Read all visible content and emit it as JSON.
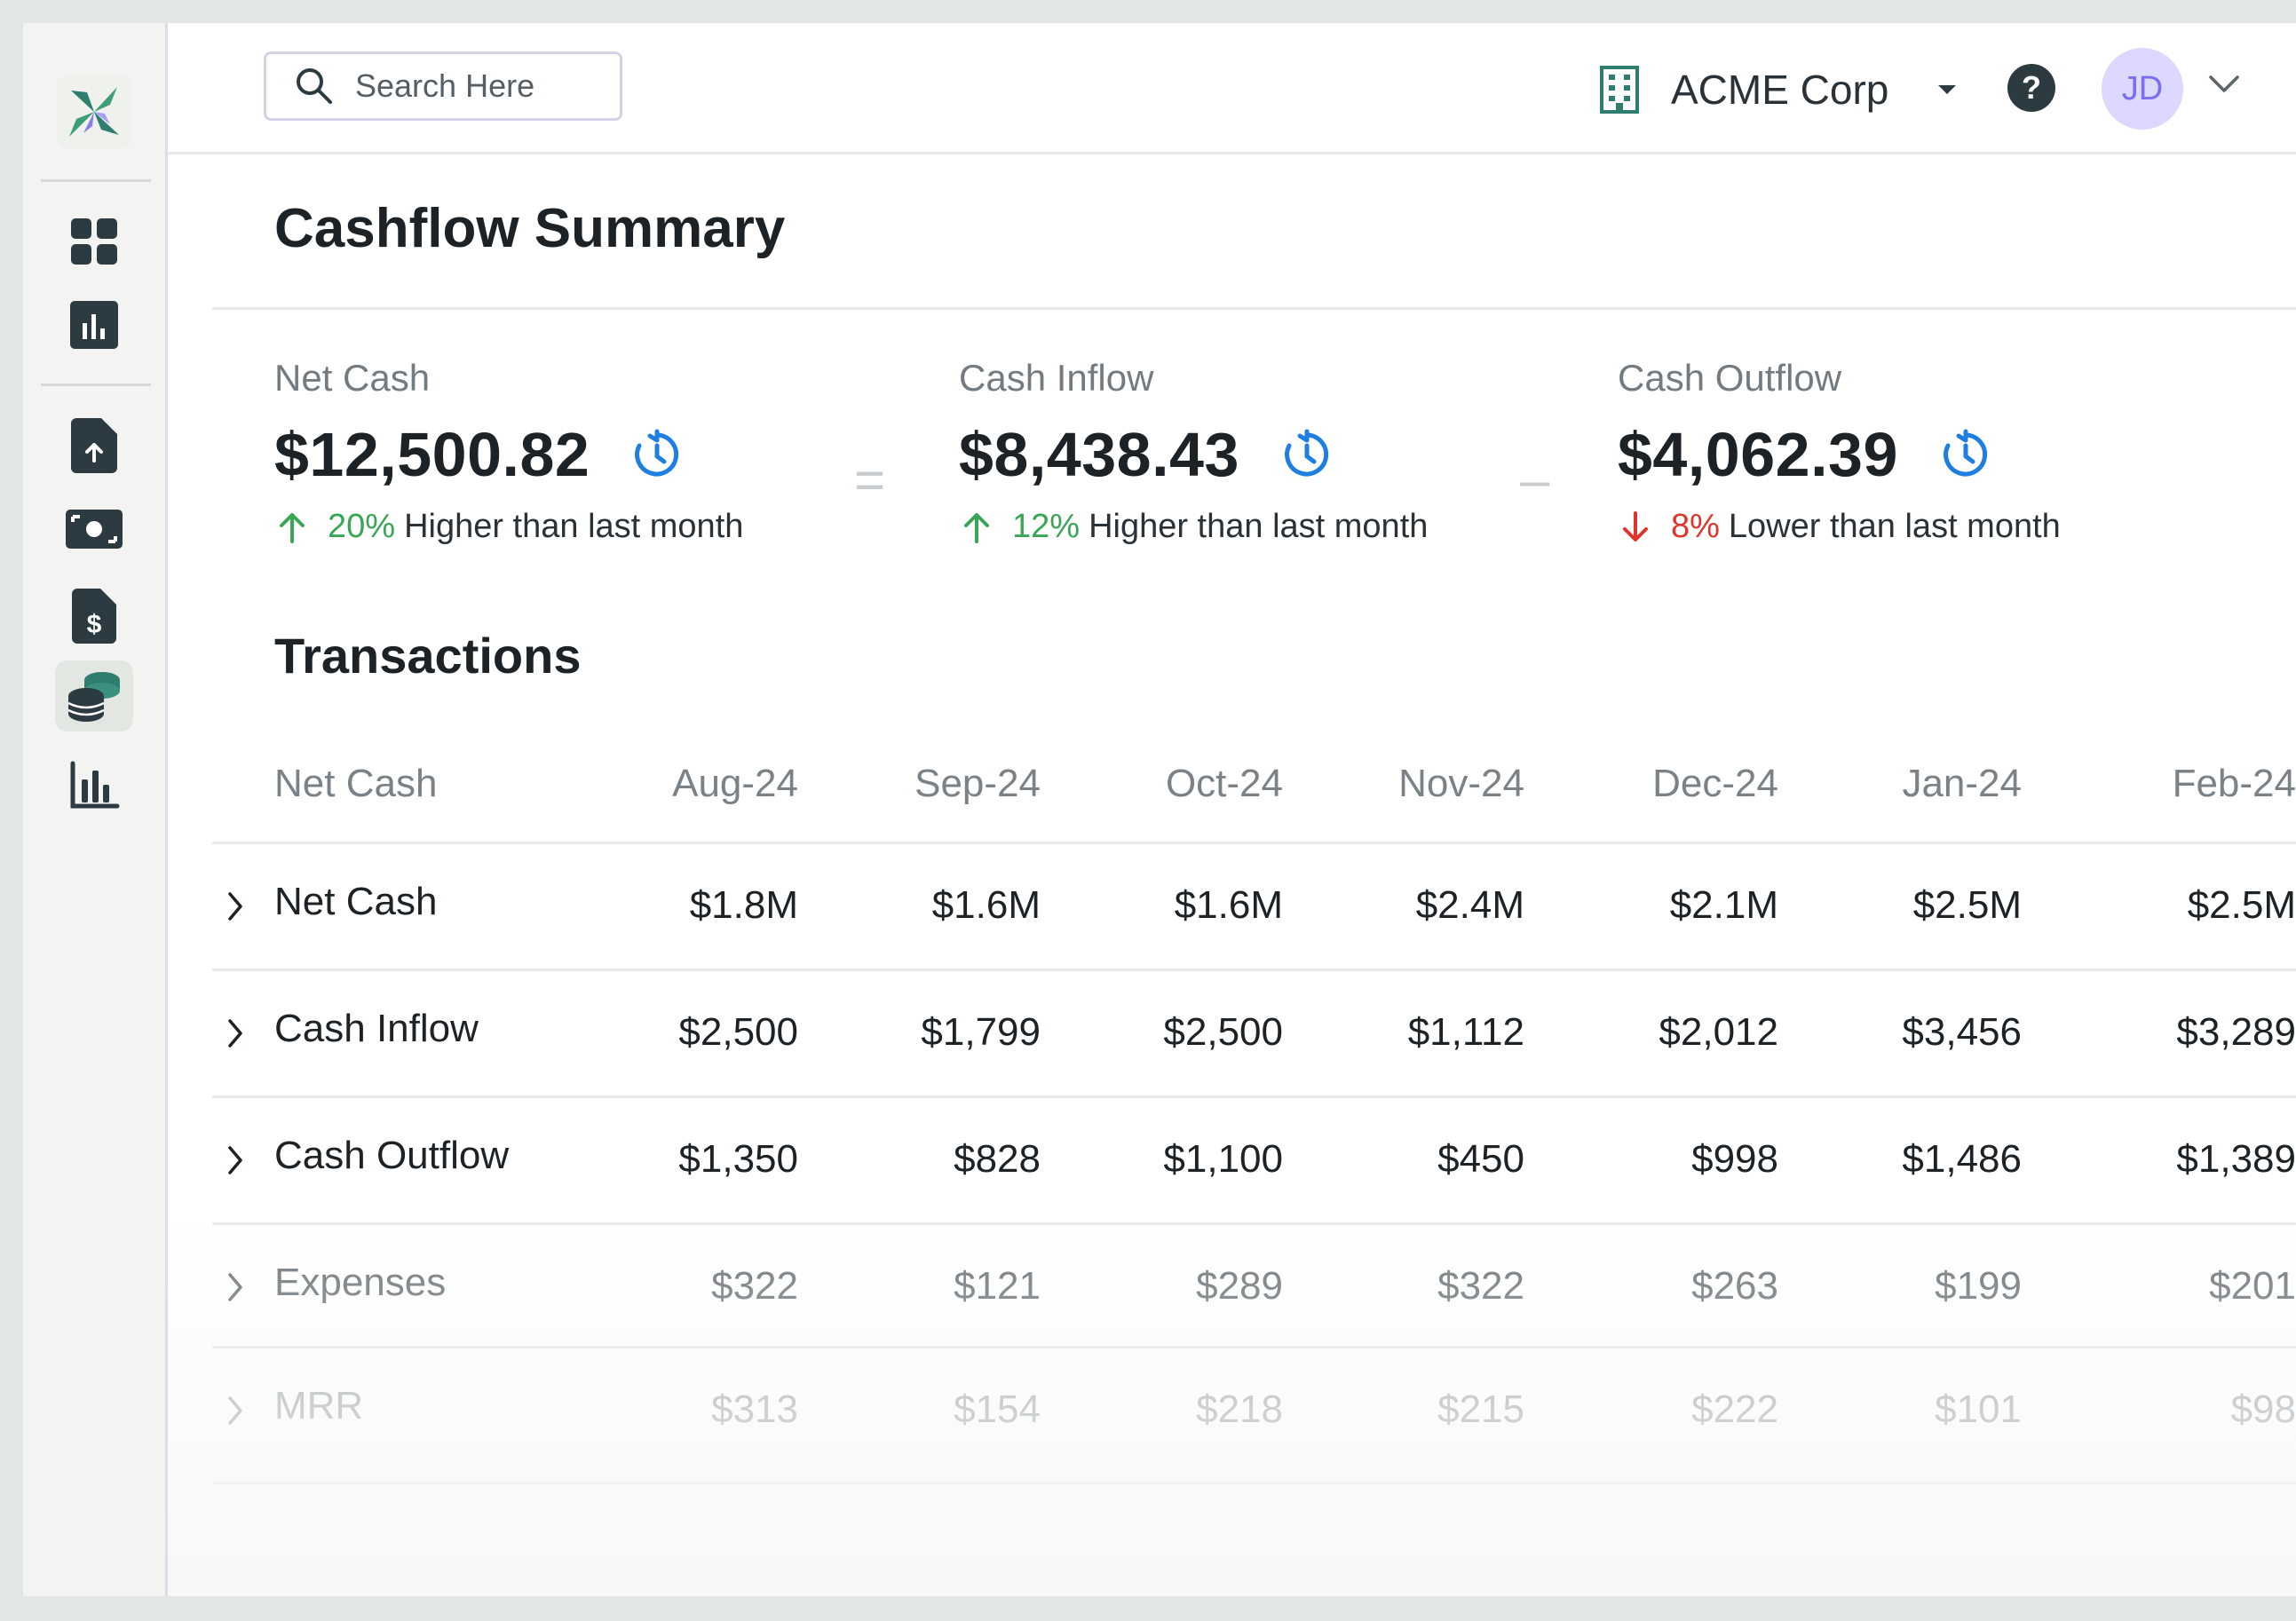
{
  "header": {
    "search_placeholder": "Search Here",
    "company": "ACME Corp",
    "help_label": "?",
    "avatar_initials": "JD"
  },
  "sidebar": {
    "items": [
      {
        "icon": "dashboard-grid-icon"
      },
      {
        "icon": "bar-chart-square-icon"
      },
      {
        "icon": "file-upload-icon"
      },
      {
        "icon": "cash-icon"
      },
      {
        "icon": "invoice-dollar-icon"
      },
      {
        "icon": "coins-stack-icon",
        "active": true
      },
      {
        "icon": "analytics-bars-icon"
      }
    ]
  },
  "page": {
    "title": "Cashflow Summary",
    "transactions_title": "Transactions"
  },
  "metrics": [
    {
      "label": "Net Cash",
      "value": "$12,500.82",
      "direction": "up",
      "pct": "20%",
      "text": "Higher than last month"
    },
    {
      "label": "Cash Inflow",
      "value": "$8,438.43",
      "direction": "up",
      "pct": "12%",
      "text": "Higher than last month"
    },
    {
      "label": "Cash Outflow",
      "value": "$4,062.39",
      "direction": "down",
      "pct": "8%",
      "text": "Lower than last month"
    }
  ],
  "operators": [
    "=",
    "–"
  ],
  "table": {
    "columns": [
      "Net Cash",
      "Aug-24",
      "Sep-24",
      "Oct-24",
      "Nov-24",
      "Dec-24",
      "Jan-24",
      "Feb-24"
    ],
    "rows": [
      {
        "label": "Net Cash",
        "values": [
          "$1.8M",
          "$1.6M",
          "$1.6M",
          "$2.4M",
          "$2.1M",
          "$2.5M",
          "$2.5M"
        ]
      },
      {
        "label": "Cash Inflow",
        "values": [
          "$2,500",
          "$1,799",
          "$2,500",
          "$1,112",
          "$2,012",
          "$3,456",
          "$3,289"
        ]
      },
      {
        "label": "Cash Outflow",
        "values": [
          "$1,350",
          "$828",
          "$1,100",
          "$450",
          "$998",
          "$1,486",
          "$1,389"
        ]
      },
      {
        "label": "Expenses",
        "values": [
          "$322",
          "$121",
          "$289",
          "$322",
          "$263",
          "$199",
          "$201"
        ]
      },
      {
        "label": "MRR",
        "values": [
          "$313",
          "$154",
          "$218",
          "$215",
          "$222",
          "$101",
          "$98"
        ]
      }
    ]
  },
  "colors": {
    "up": "#3aa655",
    "down": "#e0342c",
    "refresh": "#1e7fe0",
    "sidebar_icon": "#2c3a42",
    "accent_teal": "#2e7d6e"
  }
}
